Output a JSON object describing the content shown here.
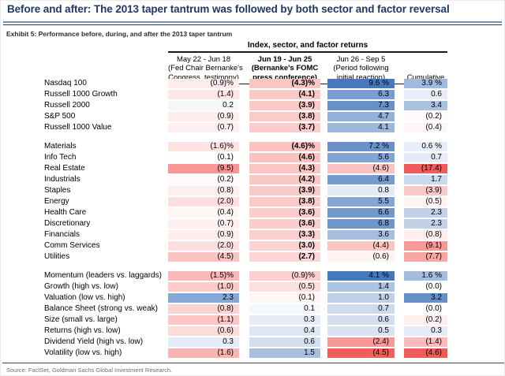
{
  "title": "Before and after: The 2013 taper tantrum was followed by both sector and factor reversal",
  "exhibit_caption": "Exhibit 5: Performance before, during, and after the 2013 taper tantrum",
  "source_line": "Source: FactSet, Goldman Sachs Global Investment Research.",
  "colors": {
    "title_navy": "#1f3864",
    "positive_max_blue": "#4678bc",
    "negative_max_red": "#f15b58",
    "rule_steel_blue": "#7093bc",
    "source_gray": "#6e6e6e"
  },
  "chart_data": {
    "type": "heatmap",
    "title": "Index, sector, and factor returns",
    "legend_position": "none",
    "color_scale_note": "diverging white-to-blue for positive, white-to-red for negative; index and sector sections share scale [-17.4, 9.6], factor section uses scale [-4.6, 4.1]",
    "columns": [
      {
        "lines": [
          "May 22 - Jun 18",
          "(Fed Chair Bernanke's",
          "Congress. testimony)"
        ],
        "bold": false
      },
      {
        "lines": [
          "Jun 19 - Jun 25",
          "(Bernanke's FOMC",
          "press conference)"
        ],
        "bold": true
      },
      {
        "lines": [
          "Jun 26 - Sep 5",
          "(Period following",
          "initial reaction)"
        ],
        "bold": false
      },
      {
        "lines": [
          "Cumulative"
        ],
        "bold": false
      }
    ],
    "sections": [
      {
        "id": "indices",
        "scale_min": -17.4,
        "scale_max": 9.6,
        "bold_mid_col": true,
        "rows": [
          {
            "label": "Nasdaq 100",
            "values": [
              -0.9,
              -4.3,
              9.6,
              3.9
            ],
            "display": [
              "(0.9)%",
              "(4.3)%",
              "9.6 %",
              "3.9 %"
            ]
          },
          {
            "label": "Russell 1000 Growth",
            "values": [
              -1.4,
              -4.1,
              6.3,
              0.6
            ],
            "display": [
              "(1.4)",
              "(4.1)",
              "6.3",
              "0.6"
            ]
          },
          {
            "label": "Russell 2000",
            "values": [
              0.2,
              -3.9,
              7.3,
              3.4
            ],
            "display": [
              "0.2",
              "(3.9)",
              "7.3",
              "3.4"
            ]
          },
          {
            "label": "S&P 500",
            "values": [
              -0.9,
              -3.8,
              4.7,
              -0.2
            ],
            "display": [
              "(0.9)",
              "(3.8)",
              "4.7",
              "(0.2)"
            ]
          },
          {
            "label": "Russell 1000 Value",
            "values": [
              -0.7,
              -3.7,
              4.1,
              -0.4
            ],
            "display": [
              "(0.7)",
              "(3.7)",
              "4.1",
              "(0.4)"
            ]
          }
        ]
      },
      {
        "id": "sectors",
        "scale_min": -17.4,
        "scale_max": 9.6,
        "bold_mid_col": true,
        "rows": [
          {
            "label": "Materials",
            "values": [
              -1.6,
              -4.6,
              7.2,
              0.6
            ],
            "display": [
              "(1.6)%",
              "(4.6)%",
              "7.2 %",
              "0.6 %"
            ]
          },
          {
            "label": "Info Tech",
            "values": [
              -0.1,
              -4.6,
              5.6,
              0.7
            ],
            "display": [
              "(0.1)",
              "(4.6)",
              "5.6",
              "0.7"
            ]
          },
          {
            "label": "Real Estate",
            "values": [
              -9.5,
              -4.3,
              -4.6,
              -17.4
            ],
            "display": [
              "(9.5)",
              "(4.3)",
              "(4.6)",
              "(17.4)"
            ]
          },
          {
            "label": "Industrials",
            "values": [
              -0.2,
              -4.2,
              6.4,
              1.7
            ],
            "display": [
              "(0.2)",
              "(4.2)",
              "6.4",
              "1.7"
            ]
          },
          {
            "label": "Staples",
            "values": [
              -0.8,
              -3.9,
              0.8,
              -3.9
            ],
            "display": [
              "(0.8)",
              "(3.9)",
              "0.8",
              "(3.9)"
            ]
          },
          {
            "label": "Energy",
            "values": [
              -2.0,
              -3.8,
              5.5,
              -0.5
            ],
            "display": [
              "(2.0)",
              "(3.8)",
              "5.5",
              "(0.5)"
            ]
          },
          {
            "label": "Health Care",
            "values": [
              -0.4,
              -3.6,
              6.6,
              2.3
            ],
            "display": [
              "(0.4)",
              "(3.6)",
              "6.6",
              "2.3"
            ]
          },
          {
            "label": "Discretionary",
            "values": [
              -0.7,
              -3.6,
              6.8,
              2.3
            ],
            "display": [
              "(0.7)",
              "(3.6)",
              "6.8",
              "2.3"
            ]
          },
          {
            "label": "Financials",
            "values": [
              -0.9,
              -3.3,
              3.6,
              -0.8
            ],
            "display": [
              "(0.9)",
              "(3.3)",
              "3.6",
              "(0.8)"
            ]
          },
          {
            "label": "Comm Services",
            "values": [
              -2.0,
              -3.0,
              -4.4,
              -9.1
            ],
            "display": [
              "(2.0)",
              "(3.0)",
              "(4.4)",
              "(9.1)"
            ]
          },
          {
            "label": "Utilities",
            "values": [
              -4.5,
              -2.7,
              -0.6,
              -7.7
            ],
            "display": [
              "(4.5)",
              "(2.7)",
              "(0.6)",
              "(7.7)"
            ]
          }
        ]
      },
      {
        "id": "factors",
        "scale_min": -4.6,
        "scale_max": 4.1,
        "bold_mid_col": false,
        "rows": [
          {
            "label": "Momentum (leaders vs. laggards)",
            "values": [
              -1.5,
              -0.9,
              4.1,
              1.6
            ],
            "display": [
              "(1.5)%",
              "(0.9)%",
              "4.1 %",
              "1.6 %"
            ]
          },
          {
            "label": "Growth (high vs. low)",
            "values": [
              -1.0,
              -0.5,
              1.4,
              0.0
            ],
            "display": [
              "(1.0)",
              "(0.5)",
              "1.4",
              "(0.0)"
            ]
          },
          {
            "label": "Valuation (low vs. high)",
            "values": [
              2.3,
              -0.1,
              1.0,
              3.2
            ],
            "display": [
              "2.3",
              "(0.1)",
              "1.0",
              "3.2"
            ]
          },
          {
            "label": "Balance Sheet (strong vs. weak)",
            "values": [
              -0.8,
              0.1,
              0.7,
              0.0
            ],
            "display": [
              "(0.8)",
              "0.1",
              "0.7",
              "(0.0)"
            ]
          },
          {
            "label": "Size (small vs. large)",
            "values": [
              -1.1,
              0.3,
              0.6,
              -0.2
            ],
            "display": [
              "(1.1)",
              "0.3",
              "0.6",
              "(0.2)"
            ]
          },
          {
            "label": "Returns (high vs. low)",
            "values": [
              -0.6,
              0.4,
              0.5,
              0.3
            ],
            "display": [
              "(0.6)",
              "0.4",
              "0.5",
              "0.3"
            ]
          },
          {
            "label": "Dividend Yield (high vs. low)",
            "values": [
              0.3,
              0.6,
              -2.4,
              -1.4
            ],
            "display": [
              "0.3",
              "0.6",
              "(2.4)",
              "(1.4)"
            ]
          },
          {
            "label": "Volatility (low vs. high)",
            "values": [
              -1.6,
              1.5,
              -4.5,
              -4.6
            ],
            "display": [
              "(1.6)",
              "1.5",
              "(4.5)",
              "(4.6)"
            ]
          }
        ]
      }
    ]
  }
}
